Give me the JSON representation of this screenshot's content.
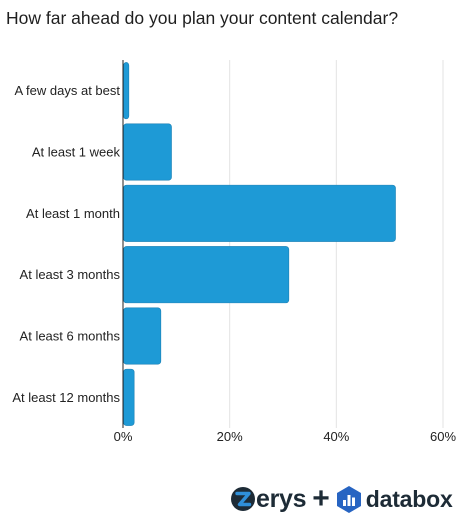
{
  "chart_data": {
    "type": "bar",
    "orientation": "horizontal",
    "title": "How far ahead do you plan your content calendar?",
    "categories": [
      "A few days at best",
      "At least 1 week",
      "At least 1 month",
      "At least 3 months",
      "At least 6 months",
      "At least 12 months"
    ],
    "values": [
      1,
      9,
      51,
      31,
      7,
      2
    ],
    "unit": "%",
    "xlim": [
      0,
      60
    ],
    "xticks": [
      0,
      20,
      40,
      60
    ],
    "tick_labels": [
      "0%",
      "20%",
      "40%",
      "60%"
    ],
    "xlabel": "",
    "ylabel": "",
    "grid": "vertical",
    "legend": "none",
    "colors": {
      "bar": "#1e9ad6",
      "bar_edge": "#1a7fb3",
      "grid": "#e3e3e3",
      "axis": "#222222"
    }
  },
  "branding": {
    "zerys_icon": "zerys-z-logo",
    "zerys_rest": "erys",
    "plus": "+",
    "databox_icon": "databox-hexagon-logo",
    "databox": "databox",
    "colors": {
      "zerys_z_dark": "#1d2b36",
      "zerys_z_blue": "#2f8fd8",
      "databox_hex": "#2764c2",
      "text": "#1d2b36"
    }
  }
}
